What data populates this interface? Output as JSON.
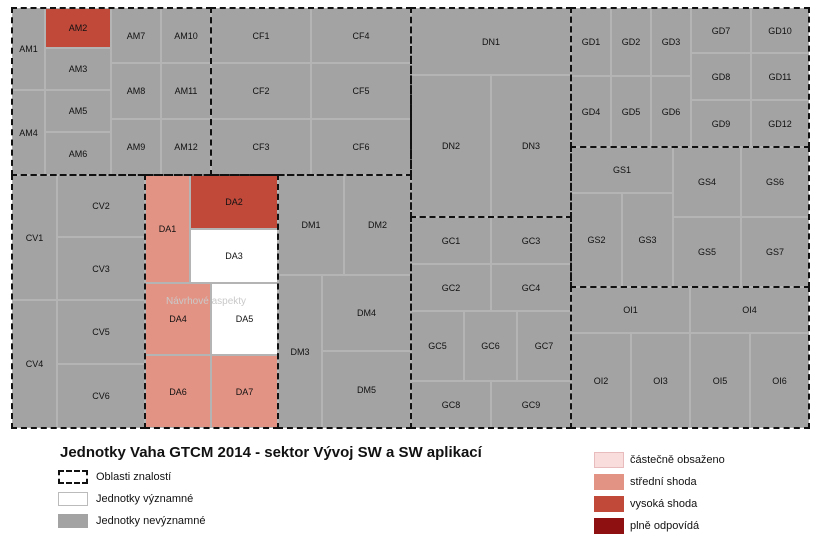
{
  "title": "Jednotky Vaha GTCM 2014 - sektor Vývoj SW a SW aplikací",
  "overlay_label": "Návrhové aspekty",
  "legend_left": [
    {
      "label": "Oblasti znalostí",
      "style": "dashed"
    },
    {
      "label": "Jednotky významné",
      "style": "white"
    },
    {
      "label": "Jednotky nevýznamné",
      "style": "grey"
    }
  ],
  "legend_right": [
    {
      "label": "částečně obsaženo",
      "color": "#f9dcdc"
    },
    {
      "label": "střední shoda",
      "color": "#e39384"
    },
    {
      "label": "vysoká shoda",
      "color": "#c0493a"
    },
    {
      "label": "plně odpovídá",
      "color": "#8e1010"
    }
  ],
  "colors": {
    "grey": "#a3a3a3",
    "white": "#ffffff",
    "mid": "#e39384",
    "high": "#c0493a"
  },
  "units": {
    "AM1": "AM1",
    "AM2": "AM2",
    "AM3": "AM3",
    "AM4": "AM4",
    "AM5": "AM5",
    "AM6": "AM6",
    "AM7": "AM7",
    "AM8": "AM8",
    "AM9": "AM9",
    "AM10": "AM10",
    "AM11": "AM11",
    "AM12": "AM12",
    "CF1": "CF1",
    "CF2": "CF2",
    "CF3": "CF3",
    "CF4": "CF4",
    "CF5": "CF5",
    "CF6": "CF6",
    "DN1": "DN1",
    "DN2": "DN2",
    "DN3": "DN3",
    "GD1": "GD1",
    "GD2": "GD2",
    "GD3": "GD3",
    "GD4": "GD4",
    "GD5": "GD5",
    "GD6": "GD6",
    "GD7": "GD7",
    "GD8": "GD8",
    "GD9": "GD9",
    "GD10": "GD10",
    "GD11": "GD11",
    "GD12": "GD12",
    "CV1": "CV1",
    "CV2": "CV2",
    "CV3": "CV3",
    "CV4": "CV4",
    "CV5": "CV5",
    "CV6": "CV6",
    "DA1": "DA1",
    "DA2": "DA2",
    "DA3": "DA3",
    "DA4": "DA4",
    "DA5": "DA5",
    "DA6": "DA6",
    "DA7": "DA7",
    "DM1": "DM1",
    "DM2": "DM2",
    "DM3": "DM3",
    "DM4": "DM4",
    "DM5": "DM5",
    "GC1": "GC1",
    "GC2": "GC2",
    "GC3": "GC3",
    "GC4": "GC4",
    "GC5": "GC5",
    "GC6": "GC6",
    "GC7": "GC7",
    "GC8": "GC8",
    "GC9": "GC9",
    "GS1": "GS1",
    "GS2": "GS2",
    "GS3": "GS3",
    "GS4": "GS4",
    "GS5": "GS5",
    "GS6": "GS6",
    "GS7": "GS7",
    "OI1": "OI1",
    "OI2": "OI2",
    "OI3": "OI3",
    "OI4": "OI4",
    "OI5": "OI5",
    "OI6": "OI6"
  }
}
